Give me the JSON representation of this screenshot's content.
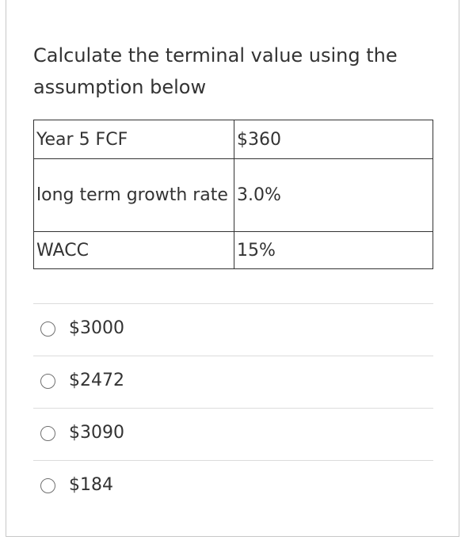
{
  "question": {
    "text": "Calculate the terminal value using the assumption below"
  },
  "assumptions": [
    {
      "label": "Year 5 FCF",
      "value": "$360"
    },
    {
      "label": "long term growth rate",
      "value": "3.0%"
    },
    {
      "label": "WACC",
      "value": "15%"
    }
  ],
  "options": [
    {
      "label": "$3000",
      "selected": false
    },
    {
      "label": "$2472",
      "selected": false
    },
    {
      "label": "$3090",
      "selected": false
    },
    {
      "label": "$184",
      "selected": false
    }
  ]
}
